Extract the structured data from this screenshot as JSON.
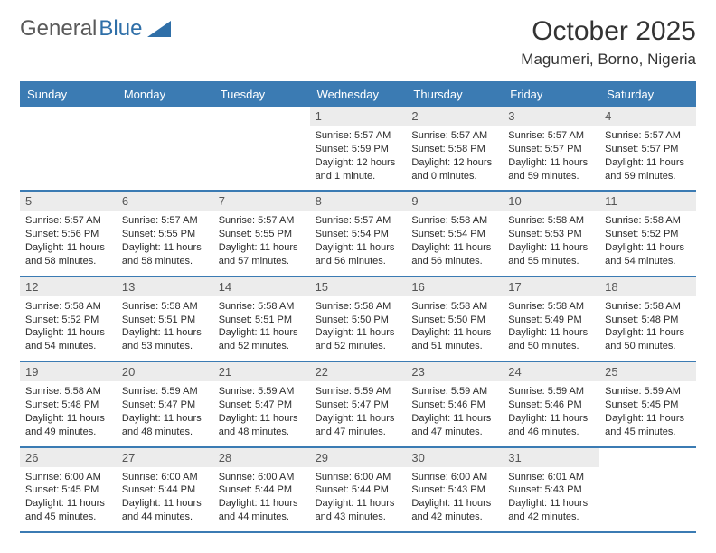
{
  "logo": {
    "text1": "General",
    "text2": "Blue"
  },
  "title": "October 2025",
  "location": "Magumeri, Borno, Nigeria",
  "colors": {
    "header_bg": "#3b7bb3",
    "header_text": "#ffffff",
    "daynum_bg": "#ececec",
    "daynum_text": "#555555",
    "body_text": "#2b2b2b",
    "logo_gray": "#5a5a5a",
    "logo_blue": "#2f6fa8",
    "rule": "#3b7bb3"
  },
  "dow": [
    "Sunday",
    "Monday",
    "Tuesday",
    "Wednesday",
    "Thursday",
    "Friday",
    "Saturday"
  ],
  "weeks": [
    [
      {
        "day": "",
        "sunrise": "",
        "sunset": "",
        "daylight": ""
      },
      {
        "day": "",
        "sunrise": "",
        "sunset": "",
        "daylight": ""
      },
      {
        "day": "",
        "sunrise": "",
        "sunset": "",
        "daylight": ""
      },
      {
        "day": "1",
        "sunrise": "Sunrise: 5:57 AM",
        "sunset": "Sunset: 5:59 PM",
        "daylight": "Daylight: 12 hours and 1 minute."
      },
      {
        "day": "2",
        "sunrise": "Sunrise: 5:57 AM",
        "sunset": "Sunset: 5:58 PM",
        "daylight": "Daylight: 12 hours and 0 minutes."
      },
      {
        "day": "3",
        "sunrise": "Sunrise: 5:57 AM",
        "sunset": "Sunset: 5:57 PM",
        "daylight": "Daylight: 11 hours and 59 minutes."
      },
      {
        "day": "4",
        "sunrise": "Sunrise: 5:57 AM",
        "sunset": "Sunset: 5:57 PM",
        "daylight": "Daylight: 11 hours and 59 minutes."
      }
    ],
    [
      {
        "day": "5",
        "sunrise": "Sunrise: 5:57 AM",
        "sunset": "Sunset: 5:56 PM",
        "daylight": "Daylight: 11 hours and 58 minutes."
      },
      {
        "day": "6",
        "sunrise": "Sunrise: 5:57 AM",
        "sunset": "Sunset: 5:55 PM",
        "daylight": "Daylight: 11 hours and 58 minutes."
      },
      {
        "day": "7",
        "sunrise": "Sunrise: 5:57 AM",
        "sunset": "Sunset: 5:55 PM",
        "daylight": "Daylight: 11 hours and 57 minutes."
      },
      {
        "day": "8",
        "sunrise": "Sunrise: 5:57 AM",
        "sunset": "Sunset: 5:54 PM",
        "daylight": "Daylight: 11 hours and 56 minutes."
      },
      {
        "day": "9",
        "sunrise": "Sunrise: 5:58 AM",
        "sunset": "Sunset: 5:54 PM",
        "daylight": "Daylight: 11 hours and 56 minutes."
      },
      {
        "day": "10",
        "sunrise": "Sunrise: 5:58 AM",
        "sunset": "Sunset: 5:53 PM",
        "daylight": "Daylight: 11 hours and 55 minutes."
      },
      {
        "day": "11",
        "sunrise": "Sunrise: 5:58 AM",
        "sunset": "Sunset: 5:52 PM",
        "daylight": "Daylight: 11 hours and 54 minutes."
      }
    ],
    [
      {
        "day": "12",
        "sunrise": "Sunrise: 5:58 AM",
        "sunset": "Sunset: 5:52 PM",
        "daylight": "Daylight: 11 hours and 54 minutes."
      },
      {
        "day": "13",
        "sunrise": "Sunrise: 5:58 AM",
        "sunset": "Sunset: 5:51 PM",
        "daylight": "Daylight: 11 hours and 53 minutes."
      },
      {
        "day": "14",
        "sunrise": "Sunrise: 5:58 AM",
        "sunset": "Sunset: 5:51 PM",
        "daylight": "Daylight: 11 hours and 52 minutes."
      },
      {
        "day": "15",
        "sunrise": "Sunrise: 5:58 AM",
        "sunset": "Sunset: 5:50 PM",
        "daylight": "Daylight: 11 hours and 52 minutes."
      },
      {
        "day": "16",
        "sunrise": "Sunrise: 5:58 AM",
        "sunset": "Sunset: 5:50 PM",
        "daylight": "Daylight: 11 hours and 51 minutes."
      },
      {
        "day": "17",
        "sunrise": "Sunrise: 5:58 AM",
        "sunset": "Sunset: 5:49 PM",
        "daylight": "Daylight: 11 hours and 50 minutes."
      },
      {
        "day": "18",
        "sunrise": "Sunrise: 5:58 AM",
        "sunset": "Sunset: 5:48 PM",
        "daylight": "Daylight: 11 hours and 50 minutes."
      }
    ],
    [
      {
        "day": "19",
        "sunrise": "Sunrise: 5:58 AM",
        "sunset": "Sunset: 5:48 PM",
        "daylight": "Daylight: 11 hours and 49 minutes."
      },
      {
        "day": "20",
        "sunrise": "Sunrise: 5:59 AM",
        "sunset": "Sunset: 5:47 PM",
        "daylight": "Daylight: 11 hours and 48 minutes."
      },
      {
        "day": "21",
        "sunrise": "Sunrise: 5:59 AM",
        "sunset": "Sunset: 5:47 PM",
        "daylight": "Daylight: 11 hours and 48 minutes."
      },
      {
        "day": "22",
        "sunrise": "Sunrise: 5:59 AM",
        "sunset": "Sunset: 5:47 PM",
        "daylight": "Daylight: 11 hours and 47 minutes."
      },
      {
        "day": "23",
        "sunrise": "Sunrise: 5:59 AM",
        "sunset": "Sunset: 5:46 PM",
        "daylight": "Daylight: 11 hours and 47 minutes."
      },
      {
        "day": "24",
        "sunrise": "Sunrise: 5:59 AM",
        "sunset": "Sunset: 5:46 PM",
        "daylight": "Daylight: 11 hours and 46 minutes."
      },
      {
        "day": "25",
        "sunrise": "Sunrise: 5:59 AM",
        "sunset": "Sunset: 5:45 PM",
        "daylight": "Daylight: 11 hours and 45 minutes."
      }
    ],
    [
      {
        "day": "26",
        "sunrise": "Sunrise: 6:00 AM",
        "sunset": "Sunset: 5:45 PM",
        "daylight": "Daylight: 11 hours and 45 minutes."
      },
      {
        "day": "27",
        "sunrise": "Sunrise: 6:00 AM",
        "sunset": "Sunset: 5:44 PM",
        "daylight": "Daylight: 11 hours and 44 minutes."
      },
      {
        "day": "28",
        "sunrise": "Sunrise: 6:00 AM",
        "sunset": "Sunset: 5:44 PM",
        "daylight": "Daylight: 11 hours and 44 minutes."
      },
      {
        "day": "29",
        "sunrise": "Sunrise: 6:00 AM",
        "sunset": "Sunset: 5:44 PM",
        "daylight": "Daylight: 11 hours and 43 minutes."
      },
      {
        "day": "30",
        "sunrise": "Sunrise: 6:00 AM",
        "sunset": "Sunset: 5:43 PM",
        "daylight": "Daylight: 11 hours and 42 minutes."
      },
      {
        "day": "31",
        "sunrise": "Sunrise: 6:01 AM",
        "sunset": "Sunset: 5:43 PM",
        "daylight": "Daylight: 11 hours and 42 minutes."
      },
      {
        "day": "",
        "sunrise": "",
        "sunset": "",
        "daylight": ""
      }
    ]
  ]
}
